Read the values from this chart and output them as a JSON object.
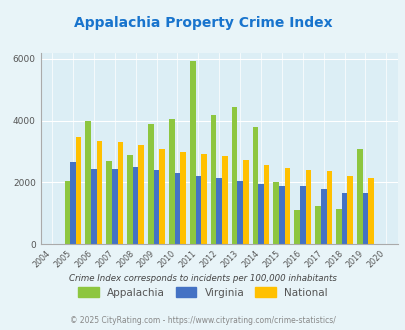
{
  "title": "Appalachia Property Crime Index",
  "years": [
    2004,
    2005,
    2006,
    2007,
    2008,
    2009,
    2010,
    2011,
    2012,
    2013,
    2014,
    2015,
    2016,
    2017,
    2018,
    2019,
    2020
  ],
  "appalachia": [
    0,
    2050,
    4000,
    2680,
    2900,
    3900,
    4050,
    5950,
    4200,
    4450,
    3800,
    2000,
    1100,
    1250,
    1150,
    3100,
    0
  ],
  "virginia": [
    0,
    2650,
    2450,
    2450,
    2500,
    2400,
    2300,
    2220,
    2150,
    2050,
    1950,
    1900,
    1900,
    1800,
    1650,
    1650,
    0
  ],
  "national": [
    0,
    3480,
    3350,
    3300,
    3200,
    3080,
    2980,
    2920,
    2870,
    2720,
    2580,
    2470,
    2400,
    2360,
    2200,
    2130,
    0
  ],
  "appalachia_color": "#8dc63f",
  "virginia_color": "#4472c4",
  "national_color": "#ffc000",
  "bg_color": "#e8f4f8",
  "plot_bg": "#dceef5",
  "ylim": [
    0,
    6200
  ],
  "yticks": [
    0,
    2000,
    4000,
    6000
  ],
  "legend_labels": [
    "Appalachia",
    "Virginia",
    "National"
  ],
  "footnote1": "Crime Index corresponds to incidents per 100,000 inhabitants",
  "footnote2": "© 2025 CityRating.com - https://www.cityrating.com/crime-statistics/",
  "title_color": "#1874cd",
  "footnote1_color": "#444444",
  "footnote2_color": "#888888",
  "bar_width": 0.27
}
